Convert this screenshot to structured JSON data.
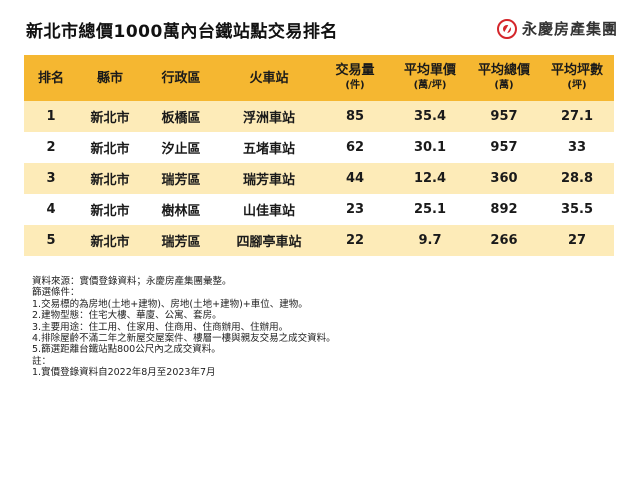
{
  "header": {
    "title": "新北市總價1000萬內台鐵站點交易排名",
    "brand": "永慶房產集團"
  },
  "table": {
    "columns": [
      {
        "label": "排名",
        "unit": ""
      },
      {
        "label": "縣市",
        "unit": ""
      },
      {
        "label": "行政區",
        "unit": ""
      },
      {
        "label": "火車站",
        "unit": ""
      },
      {
        "label": "交易量",
        "unit": "(件)"
      },
      {
        "label": "平均單價",
        "unit": "(萬/坪)"
      },
      {
        "label": "平均總價",
        "unit": "(萬)"
      },
      {
        "label": "平均坪數",
        "unit": "(坪)"
      }
    ],
    "rows": [
      [
        "1",
        "新北市",
        "板橋區",
        "浮洲車站",
        "85",
        "35.4",
        "957",
        "27.1"
      ],
      [
        "2",
        "新北市",
        "汐止區",
        "五堵車站",
        "62",
        "30.1",
        "957",
        "33"
      ],
      [
        "3",
        "新北市",
        "瑞芳區",
        "瑞芳車站",
        "44",
        "12.4",
        "360",
        "28.8"
      ],
      [
        "4",
        "新北市",
        "樹林區",
        "山佳車站",
        "23",
        "25.1",
        "892",
        "35.5"
      ],
      [
        "5",
        "新北市",
        "瑞芳區",
        "四腳亭車站",
        "22",
        "9.7",
        "266",
        "27"
      ]
    ]
  },
  "notes": [
    "資料來源：實價登錄資料；永慶房產集團彙整。",
    "篩選條件：",
    "1.交易標的為房地(土地+建物)、房地(土地+建物)+車位、建物。",
    "2.建物型態：住宅大樓、華廈、公寓、套房。",
    "3.主要用途：住工用、住家用、住商用、住商辦用、住辦用。",
    "4.排除屋齡不滿二年之新屋交屋案件、樓層一樓與親友交易之成交資料。",
    "5.篩選距離台鐵站點800公尺內之成交資料。",
    "註：",
    "1.實價登錄資料自2022年8月至2023年7月"
  ],
  "colors": {
    "header_bg": "#f5b731",
    "row_alt_bg": "#fdebb8",
    "brand_red": "#d4262b"
  }
}
